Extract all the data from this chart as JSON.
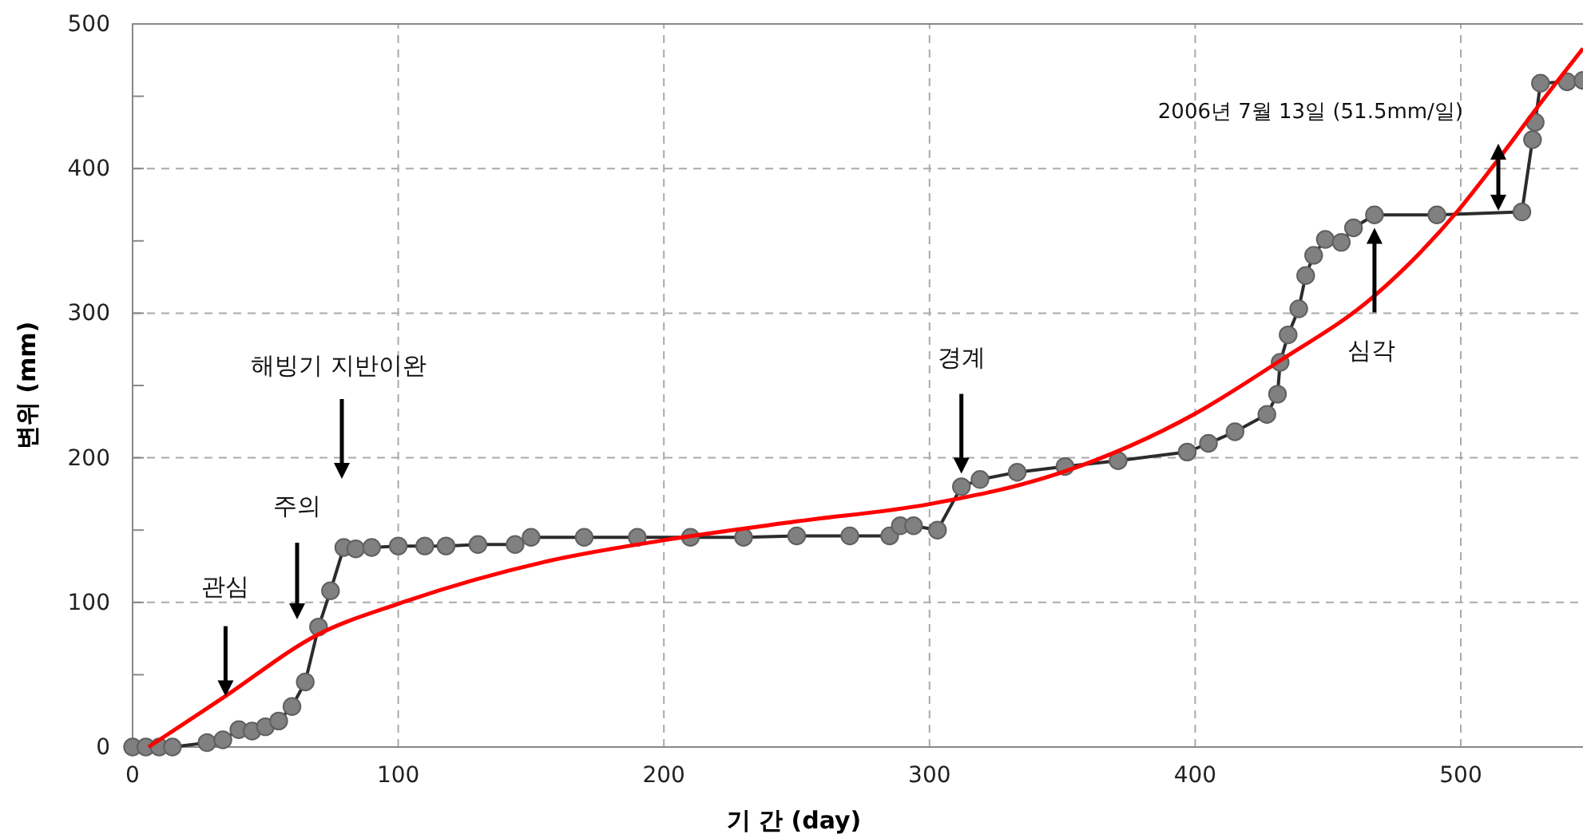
{
  "chart_data": {
    "type": "line",
    "xlabel": "기 간 (day)",
    "ylabel": "변위 (mm)",
    "xlim": [
      0,
      546
    ],
    "xticks": [
      0,
      100,
      200,
      300,
      400,
      500
    ],
    "ylim": [
      0,
      500
    ],
    "yticks": [
      0,
      {
        "value": 50,
        "label": null
      },
      100,
      {
        "value": 150,
        "label": null
      },
      200,
      {
        "value": 250,
        "label": null
      },
      300,
      {
        "value": 350,
        "label": null
      },
      400,
      {
        "value": 450,
        "label": null
      },
      500
    ],
    "grid": true,
    "marker": "circle",
    "line_style": "solid",
    "series": [
      {
        "color": "#808080",
        "x": [
          0,
          5,
          10,
          15,
          28,
          34,
          40,
          45,
          50,
          55,
          60,
          65,
          70,
          74.5,
          79.5,
          84,
          90,
          100,
          110,
          118,
          130,
          144,
          150,
          170,
          190,
          210,
          230,
          250,
          270,
          285,
          289,
          294,
          303,
          312,
          319,
          333,
          351,
          371,
          397,
          405,
          415,
          427,
          431,
          432,
          435,
          439,
          441.6,
          444.6,
          449,
          455,
          459.6,
          467.5,
          491,
          523,
          527,
          528,
          530,
          540,
          546
        ],
        "values": [
          0,
          0,
          0,
          0,
          3,
          5,
          12,
          11,
          14,
          18,
          28,
          45,
          83,
          108,
          138,
          137,
          138,
          139,
          139,
          139,
          140,
          140,
          145,
          145,
          145,
          145,
          145,
          146,
          146,
          146,
          153,
          153,
          150,
          180,
          185,
          190,
          194,
          198,
          204,
          210,
          218,
          230,
          244,
          266,
          285,
          303,
          326,
          340,
          351,
          349,
          359,
          368,
          368,
          370,
          420,
          432,
          459,
          460,
          461
        ]
      },
      {
        "color": "#ff0000",
        "type": "line",
        "marker": "none",
        "x": [
          6,
          34,
          70,
          100,
          155,
          200,
          250,
          300,
          350,
          399.5,
          431,
          467.5,
          499,
          514,
          532,
          546
        ],
        "values": [
          0,
          34,
          78,
          99,
          128,
          143,
          156,
          168,
          190,
          230,
          266,
          312,
          371,
          406,
          450,
          483
        ]
      }
    ],
    "annotations": [
      {
        "text": "관심",
        "x": 35,
        "y": 35
      },
      "주의",
      "해빙기 지반이완",
      {
        "text": "경계",
        "x": 312,
        "y": 189
      },
      {
        "text": "심각",
        "x": 467.5,
        "y": 359
      },
      "2006년 7월 13일 (51.5mm/일)"
    ]
  }
}
